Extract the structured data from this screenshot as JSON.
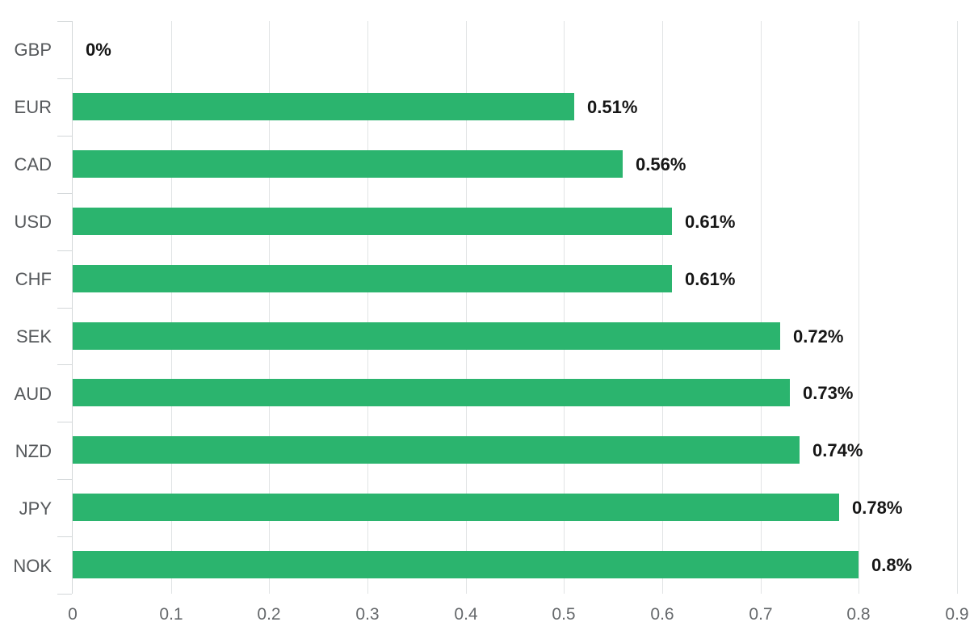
{
  "chart_data": {
    "type": "bar",
    "orientation": "horizontal",
    "title": "",
    "xlabel": "",
    "ylabel": "",
    "categories": [
      "GBP",
      "EUR",
      "CAD",
      "USD",
      "CHF",
      "SEK",
      "AUD",
      "NZD",
      "JPY",
      "NOK"
    ],
    "values": [
      0,
      0.51,
      0.56,
      0.61,
      0.61,
      0.72,
      0.73,
      0.74,
      0.78,
      0.8
    ],
    "value_labels": [
      "0%",
      "0.51%",
      "0.56%",
      "0.61%",
      "0.61%",
      "0.72%",
      "0.73%",
      "0.74%",
      "0.78%",
      "0.8%"
    ],
    "x_ticks": [
      0,
      0.1,
      0.2,
      0.3,
      0.4,
      0.5,
      0.6,
      0.7,
      0.8,
      0.9
    ],
    "x_tick_labels": [
      "0",
      "0.1",
      "0.2",
      "0.3",
      "0.4",
      "0.5",
      "0.6",
      "0.7",
      "0.8",
      "0.9"
    ],
    "xlim": [
      0,
      0.9
    ],
    "grid": true,
    "legend": false,
    "colors": {
      "bar": "#2bb46e",
      "axis": "#d3d7d9",
      "gridline": "#e1e4e5",
      "category_label": "#55585b",
      "x_tick_label": "#66696c",
      "value_label": "#161616",
      "background": "#ffffff"
    }
  }
}
